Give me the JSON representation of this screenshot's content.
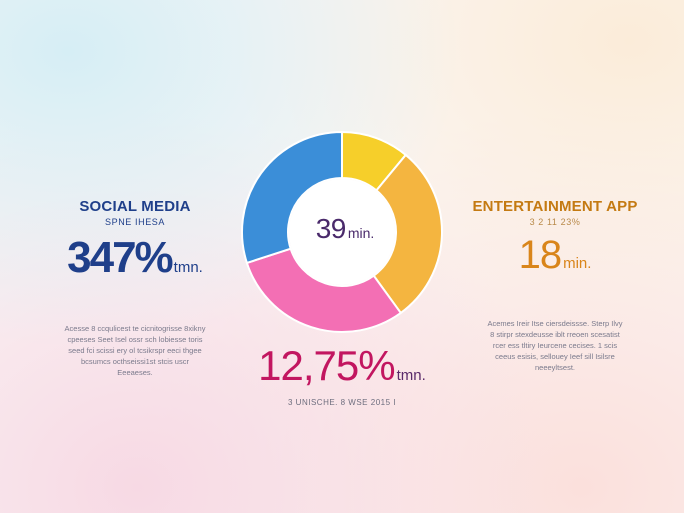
{
  "chart_data": {
    "type": "pie",
    "donut": true,
    "slices": [
      {
        "label": "",
        "value": 11,
        "color": "#f6cf2a"
      },
      {
        "label": "",
        "value": 29,
        "color": "#f4b540"
      },
      {
        "label": "",
        "value": 30,
        "color": "#f36fb4"
      },
      {
        "label": "",
        "value": 30,
        "color": "#3b8ed8"
      }
    ],
    "center_value": "39",
    "center_unit": "min."
  },
  "left_panel": {
    "title": "SOCIAL MEDIA",
    "subtitle": "SPNE IHESA",
    "value": "347%",
    "unit": "tmn.",
    "description": [
      "Acesse 8 ccqulicest te cicnitogrisse 8xikny",
      "cpeeses Seet Isel ossr sch lobiesse toris",
      "seed fci scissi ery ol tcsikrspr eeci thgee",
      "bcsumcs octhseissi1st stcis uscr",
      "Eeeaeses."
    ]
  },
  "right_panel": {
    "title": "ENTERTAINMENT APP",
    "subtitle": "3 2 11 23%",
    "value": "18",
    "unit": "min.",
    "description": [
      "Acemes Ireir Itse ciersdeissse. Sterp Ilvy",
      "8 stirpr stexdeusse iblt rreoen scesatist",
      "rcer ess tltiry Ieurcene cecises. 1 scis",
      "ceeus esisis, sellouey Ieef sill Isilsre",
      "neeeyltsest."
    ]
  },
  "bottom_stat": {
    "value": "12,75%",
    "unit": "tmn.",
    "caption": "3 UNISCHE. 8 WSE 2015 I"
  }
}
